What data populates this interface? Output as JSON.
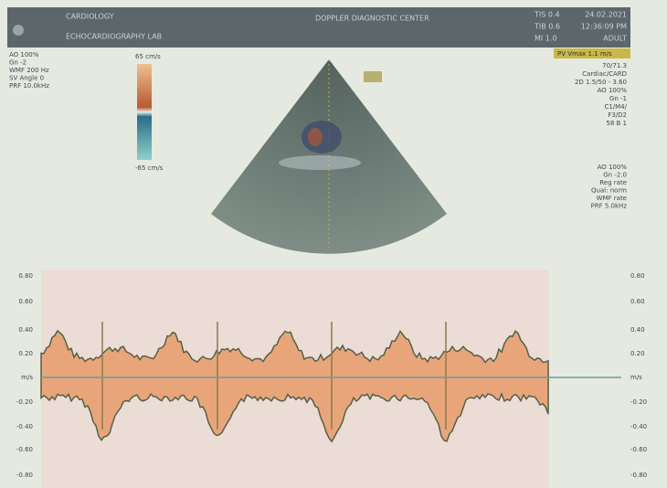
{
  "header": {
    "left": [
      "CARDIOLOGY",
      "ECHOCARDIOGRAPHY LAB"
    ],
    "center": "DOPPLER DIAGNOSTIC CENTER",
    "right": [
      [
        "TIS 0.4",
        "24.02.2021"
      ],
      [
        "TIB 0.6",
        "12:36:09 PM"
      ],
      [
        "MI 1.0",
        "ADULT"
      ]
    ]
  },
  "measurement": "PV Vmax 1.1 m/s",
  "left_params": [
    "AO 100%",
    "Gn -2",
    "WMF 200 Hz",
    "SV Angle 0",
    "PRF 10.0kHz"
  ],
  "colorbar": {
    "top": "65 cm/s",
    "bottom": "-65 cm/s"
  },
  "right_params_1": [
    "70/71.3",
    "Cardiac/CARD",
    "2D 1.5/50 - 3.60",
    "AO 100%",
    "Gn -1",
    "C1/M4/",
    "F3/D2",
    "58 B 1"
  ],
  "right_params_2": [
    "AO 100%",
    "Gn -2.0",
    "Reg rate",
    "Qual: norm",
    "WMF rate",
    "PRF 5.0kHz"
  ],
  "doppler": {
    "left_axis": [
      "0.80",
      "0.60",
      "0.40",
      "0.20",
      "m/s",
      "-0.20",
      "-0.40",
      "-0.60",
      "-0.80"
    ],
    "right_axis": [
      "0.80",
      "0.60",
      "0.40",
      "0.20",
      "m/s",
      "-0.20",
      "-0.40",
      "-0.60",
      "-0.80"
    ]
  }
}
